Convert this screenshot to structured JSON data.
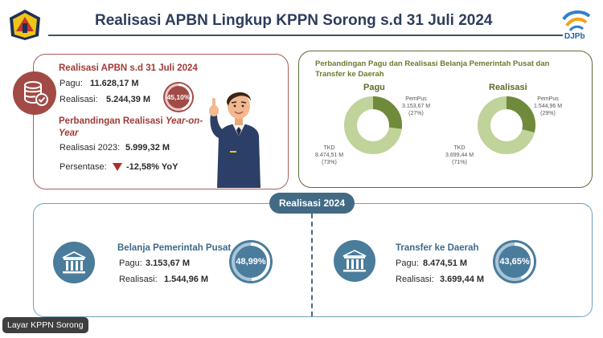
{
  "header": {
    "title": "Realisasi APBN Lingkup KPPN Sorong s.d 31 Juli 2024",
    "logo_right_text": "DJPb"
  },
  "summary": {
    "heading": "Realisasi APBN s.d 31 Juli 2024",
    "pagu_label": "Pagu:",
    "pagu_value": "11.628,17 M",
    "realisasi_label": "Realisasi:",
    "realisasi_value": "5.244,39 M",
    "percent": "45,10%",
    "percent_fraction": 0.451,
    "yoy_heading_plain": "Perbandingan Realisasi ",
    "yoy_heading_italic": "Year-on-",
    "yoy_heading_italic2": "Year",
    "realisasi_2023_label": "Realisasi 2023:",
    "realisasi_2023_value": "5.999,32 M",
    "persentase_label": "Persentase:",
    "persentase_value": "-12,58% YoY"
  },
  "comparison": {
    "title": "Perbandingan Pagu dan Realisasi Belanja Pemerintah Pusat dan Transfer ke Daerah",
    "pagu_title": "Pagu",
    "realisasi_title": "Realisasi",
    "pagu_pempus_label": "PemPus",
    "pagu_pempus_value": "3.153,67 M",
    "pagu_pempus_pct": "(27%)",
    "pagu_tkd_label": "TKD",
    "pagu_tkd_value": "8.474,51 M",
    "pagu_tkd_pct": "(73%)",
    "real_pempus_label": "PemPus",
    "real_pempus_value": "1.544,96 M",
    "real_pempus_pct": "(29%)",
    "real_tkd_label": "TKD",
    "real_tkd_value": "3.699,44 M",
    "real_tkd_pct": "(71%)",
    "pagu_pempus_fraction": 0.27,
    "real_pempus_fraction": 0.29,
    "colors": {
      "pempus": "#6f8a3a",
      "tkd": "#bfd39a"
    }
  },
  "realisasi_2024": {
    "pill": "Realisasi 2024",
    "pusat": {
      "heading": "Belanja Pemerintah Pusat",
      "pagu_label": "Pagu:",
      "pagu_value": "3.153,67 M",
      "realisasi_label": "Realisasi:",
      "realisasi_value": "1.544,96 M",
      "percent": "48,99%",
      "percent_fraction": 0.4899
    },
    "tkd": {
      "heading": "Transfer ke Daerah",
      "pagu_label": "Pagu:",
      "pagu_value": "8.474,51 M",
      "realisasi_label": "Realisasi:",
      "realisasi_value": "3.699,44 M",
      "percent": "43,65%",
      "percent_fraction": 0.4365
    }
  },
  "watermark": "Layar KPPN Sorong"
}
